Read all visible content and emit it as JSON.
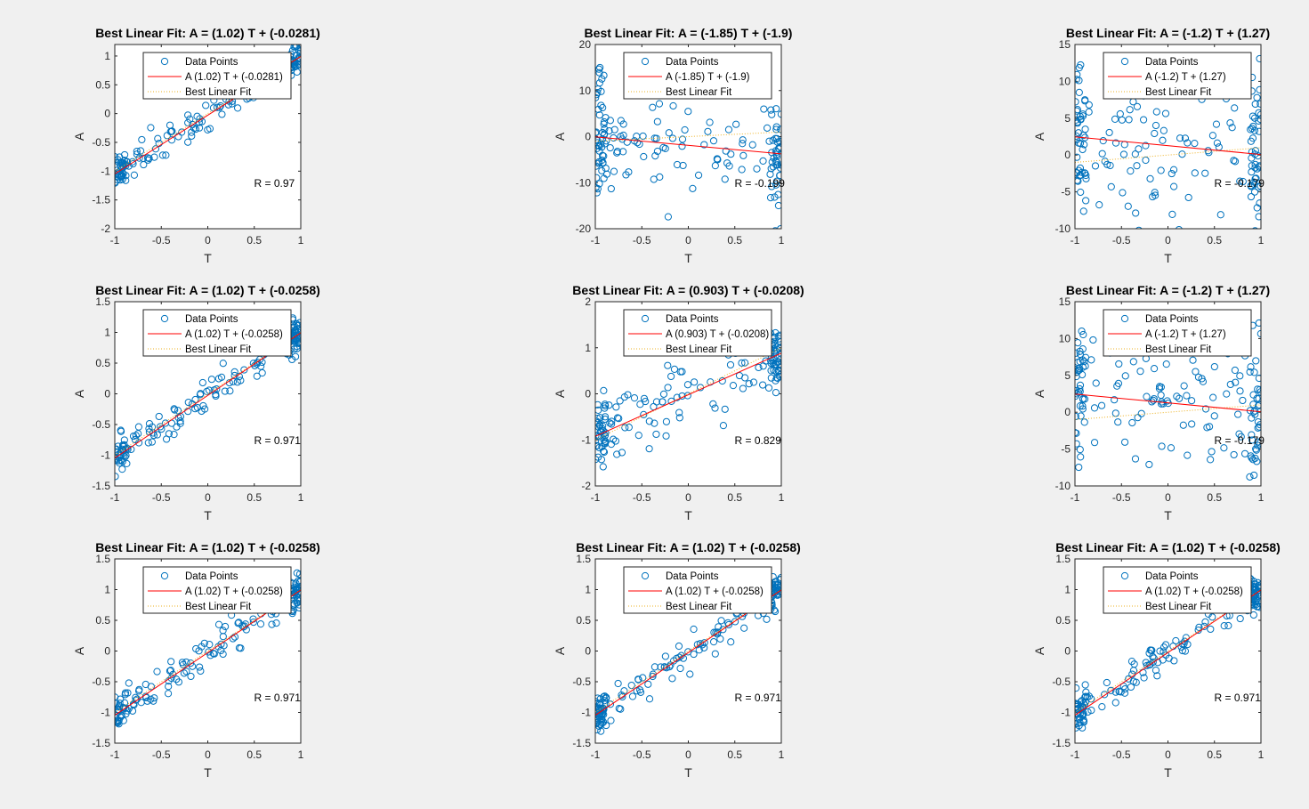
{
  "chart_data": [
    {
      "type": "scatter",
      "title": "Best Linear Fit:  A = (1.02) T + (-0.0281)",
      "xlabel": "T",
      "ylabel": "A",
      "xlim": [
        -1,
        1
      ],
      "ylim": [
        -2,
        1.2
      ],
      "xticks": [
        -1,
        -0.5,
        0,
        0.5,
        1
      ],
      "yticks": [
        -2,
        -1.5,
        -1,
        -0.5,
        0,
        0.5,
        1
      ],
      "fit": {
        "slope": 1.02,
        "intercept": -0.0281
      },
      "legend": [
        "Data Points",
        "A (1.02) T + (-0.0281)",
        "Best Linear Fit"
      ],
      "r_label": "R = 0.97",
      "noise": 0.15,
      "seed": 11
    },
    {
      "type": "scatter",
      "title": "Best Linear Fit:  A = (-1.85) T + (-1.9)",
      "xlabel": "T",
      "ylabel": "A",
      "xlim": [
        -1,
        1
      ],
      "ylim": [
        -20,
        20
      ],
      "xticks": [
        -1,
        -0.5,
        0,
        0.5,
        1
      ],
      "yticks": [
        -20,
        -10,
        0,
        10,
        20
      ],
      "fit": {
        "slope": -1.85,
        "intercept": -1.9
      },
      "legend": [
        "Data Points",
        "A (-1.85) T + (-1.9)",
        "Best Linear Fit"
      ],
      "r_label": "R = -0.199",
      "noise": 6,
      "seed": 22
    },
    {
      "type": "scatter",
      "title": "Best Linear Fit:  A = (-1.2) T + (1.27)",
      "xlabel": "T",
      "ylabel": "A",
      "xlim": [
        -1,
        1
      ],
      "ylim": [
        -10,
        15
      ],
      "xticks": [
        -1,
        -0.5,
        0,
        0.5,
        1
      ],
      "yticks": [
        -10,
        -5,
        0,
        5,
        10,
        15
      ],
      "fit": {
        "slope": -1.2,
        "intercept": 1.27
      },
      "legend": [
        "Data Points",
        "A (-1.2) T + (1.27)",
        "Best Linear Fit"
      ],
      "r_label": "R = -0.179",
      "noise": 5,
      "seed": 33
    },
    {
      "type": "scatter",
      "title": "Best Linear Fit:  A = (1.02) T + (-0.0258)",
      "xlabel": "T",
      "ylabel": "A",
      "xlim": [
        -1,
        1
      ],
      "ylim": [
        -1.5,
        1.5
      ],
      "xticks": [
        -1,
        -0.5,
        0,
        0.5,
        1
      ],
      "yticks": [
        -1.5,
        -1,
        -0.5,
        0,
        0.5,
        1,
        1.5
      ],
      "fit": {
        "slope": 1.02,
        "intercept": -0.0258
      },
      "legend": [
        "Data Points",
        "A (1.02) T + (-0.0258)",
        "Best Linear Fit"
      ],
      "r_label": "R = 0.971",
      "noise": 0.15,
      "seed": 44
    },
    {
      "type": "scatter",
      "title": "Best Linear Fit:  A = (0.903) T + (-0.0208)",
      "xlabel": "T",
      "ylabel": "A",
      "xlim": [
        -1,
        1
      ],
      "ylim": [
        -2,
        2
      ],
      "xticks": [
        -1,
        -0.5,
        0,
        0.5,
        1
      ],
      "yticks": [
        -2,
        -1,
        0,
        1,
        2
      ],
      "fit": {
        "slope": 0.903,
        "intercept": -0.0208
      },
      "legend": [
        "Data Points",
        "A (0.903) T + (-0.0208)",
        "Best Linear Fit"
      ],
      "r_label": "R = 0.829",
      "noise": 0.38,
      "seed": 55
    },
    {
      "type": "scatter",
      "title": "Best Linear Fit:  A = (-1.2) T + (1.27)",
      "xlabel": "T",
      "ylabel": "A",
      "xlim": [
        -1,
        1
      ],
      "ylim": [
        -10,
        15
      ],
      "xticks": [
        -1,
        -0.5,
        0,
        0.5,
        1
      ],
      "yticks": [
        -10,
        -5,
        0,
        5,
        10,
        15
      ],
      "fit": {
        "slope": -1.2,
        "intercept": 1.27
      },
      "legend": [
        "Data Points",
        "A (-1.2) T + (1.27)",
        "Best Linear Fit"
      ],
      "r_label": "R = -0.179",
      "noise": 5,
      "seed": 66
    },
    {
      "type": "scatter",
      "title": "Best Linear Fit:  A = (1.02) T + (-0.0258)",
      "xlabel": "T",
      "ylabel": "A",
      "xlim": [
        -1,
        1
      ],
      "ylim": [
        -1.5,
        1.5
      ],
      "xticks": [
        -1,
        -0.5,
        0,
        0.5,
        1
      ],
      "yticks": [
        -1.5,
        -1,
        -0.5,
        0,
        0.5,
        1,
        1.5
      ],
      "fit": {
        "slope": 1.02,
        "intercept": -0.0258
      },
      "legend": [
        "Data Points",
        "A (1.02) T + (-0.0258)",
        "Best Linear Fit"
      ],
      "r_label": "R = 0.971",
      "noise": 0.15,
      "seed": 77
    },
    {
      "type": "scatter",
      "title": "Best Linear Fit:  A = (1.02) T + (-0.0258)",
      "xlabel": "T",
      "ylabel": "A",
      "xlim": [
        -1,
        1
      ],
      "ylim": [
        -1.5,
        1.5
      ],
      "xticks": [
        -1,
        -0.5,
        0,
        0.5,
        1
      ],
      "yticks": [
        -1.5,
        -1,
        -0.5,
        0,
        0.5,
        1,
        1.5
      ],
      "fit": {
        "slope": 1.02,
        "intercept": -0.0258
      },
      "legend": [
        "Data Points",
        "A (1.02) T + (-0.0258)",
        "Best Linear Fit"
      ],
      "r_label": "R = 0.971",
      "noise": 0.15,
      "seed": 88
    },
    {
      "type": "scatter",
      "title": "Best Linear Fit:  A = (1.02) T + (-0.0258)",
      "xlabel": "T",
      "ylabel": "A",
      "xlim": [
        -1,
        1
      ],
      "ylim": [
        -1.5,
        1.5
      ],
      "xticks": [
        -1,
        -0.5,
        0,
        0.5,
        1
      ],
      "yticks": [
        -1.5,
        -1,
        -0.5,
        0,
        0.5,
        1,
        1.5
      ],
      "fit": {
        "slope": 1.02,
        "intercept": -0.0258
      },
      "legend": [
        "Data Points",
        "A (1.02) T + (-0.0258)",
        "Best Linear Fit"
      ],
      "r_label": "R = 0.971",
      "noise": 0.15,
      "seed": 99
    }
  ],
  "colors": {
    "points": "#0072BD",
    "fit_line": "#FF0000",
    "best_line": "#EDB120",
    "background": "#F0F0F0",
    "axes_bg": "#FFFFFF",
    "axis": "#262626"
  }
}
